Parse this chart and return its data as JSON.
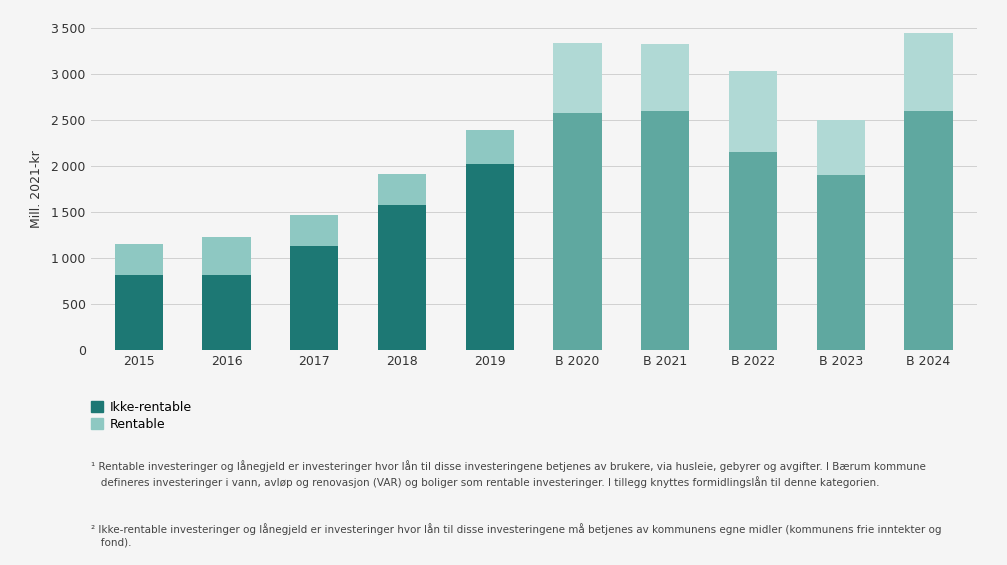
{
  "categories": [
    "2015",
    "2016",
    "2017",
    "2018",
    "2019",
    "B 2020",
    "B 2021",
    "B 2022",
    "B 2023",
    "B 2024"
  ],
  "ikke_rentable": [
    820,
    820,
    1130,
    1580,
    2020,
    2580,
    2600,
    2150,
    1900,
    2600
  ],
  "rentable": [
    330,
    410,
    340,
    340,
    370,
    760,
    730,
    880,
    600,
    850
  ],
  "early_ikke_color": "#1d7874",
  "early_rent_color": "#8ec8c2",
  "late_ikke_color": "#5fa8a0",
  "late_rent_color": "#b0d9d5",
  "ylim": [
    0,
    3500
  ],
  "yticks": [
    0,
    500,
    1000,
    1500,
    2000,
    2500,
    3000,
    3500
  ],
  "ylabel": "Mill. 2021-kr",
  "legend_ikke": "Ikke-rentable",
  "legend_rent": "Rentable",
  "footnote1": "¹ Rentable investeringer og lånegjeld er investeringer hvor lån til disse investeringene betjenes av brukere, via husleie, gebyrer og avgifter. I Bærum kommune\n   defineres investeringer i vann, avløp og renovasjon (VAR) og boliger som rentable investeringer. I tillegg knyttes formidlingslån til denne kategorien.",
  "footnote2": "² Ikke-rentable investeringer og lånegjeld er investeringer hvor lån til disse investeringene må betjenes av kommunens egne midler (kommunens frie inntekter og\n   fond).",
  "background_color": "#f5f5f5",
  "grid_color": "#d0d0d0",
  "bar_width": 0.55,
  "figsize": [
    10.07,
    5.65
  ],
  "dpi": 100
}
